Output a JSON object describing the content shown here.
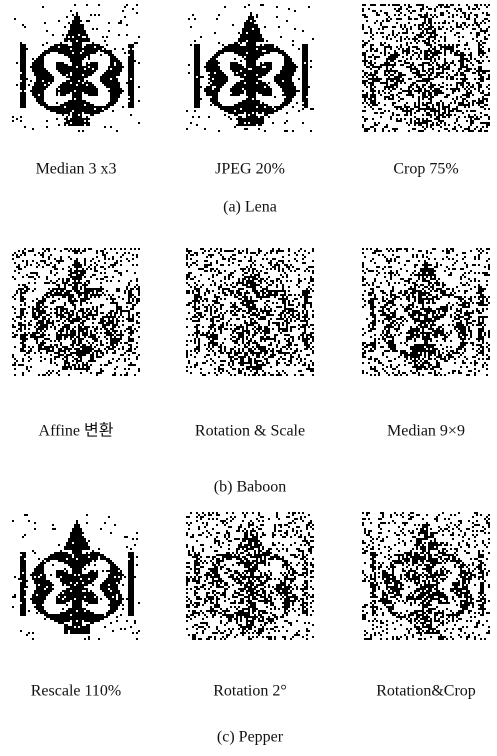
{
  "figure": {
    "groups": [
      {
        "panels": [
          "Median 3 x3",
          "JPEG 20%",
          "Crop 75%"
        ],
        "caption": "(a) Lena"
      },
      {
        "panels": [
          "Affine 변환",
          "Rotation & Scale",
          "Median 9×9"
        ],
        "caption": "(b) Baboon"
      },
      {
        "panels": [
          "Rescale 110%",
          "Rotation 2°",
          "Rotation&Crop"
        ],
        "caption": "(c) Pepper"
      }
    ]
  }
}
